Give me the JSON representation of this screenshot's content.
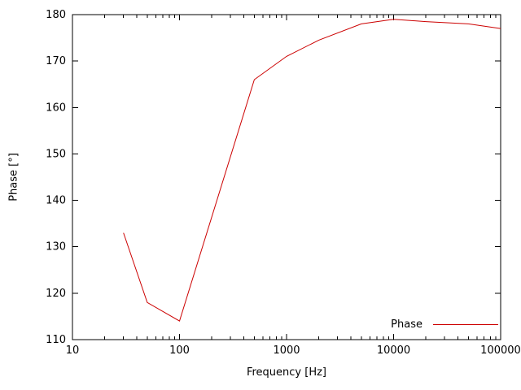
{
  "chart_data": {
    "type": "line",
    "title": "",
    "xlabel": "Frequency [Hz]",
    "ylabel": "Phase [°]",
    "x_scale": "log",
    "xlim": [
      10,
      100000
    ],
    "ylim": [
      110,
      180
    ],
    "x_ticks": [
      10,
      100,
      1000,
      10000,
      100000
    ],
    "x_tick_labels": [
      "10",
      "100",
      "1000",
      "10000",
      "100000"
    ],
    "y_ticks": [
      110,
      120,
      130,
      140,
      150,
      160,
      170,
      180
    ],
    "grid": false,
    "legend_position": "bottom-right",
    "series": [
      {
        "name": "Phase",
        "color": "#cc0000",
        "x": [
          30,
          50,
          100,
          500,
          1000,
          2000,
          5000,
          10000,
          20000,
          50000,
          100000
        ],
        "y": [
          133,
          118,
          114,
          166,
          171,
          174.5,
          178,
          179,
          178.5,
          178,
          177
        ]
      }
    ]
  }
}
